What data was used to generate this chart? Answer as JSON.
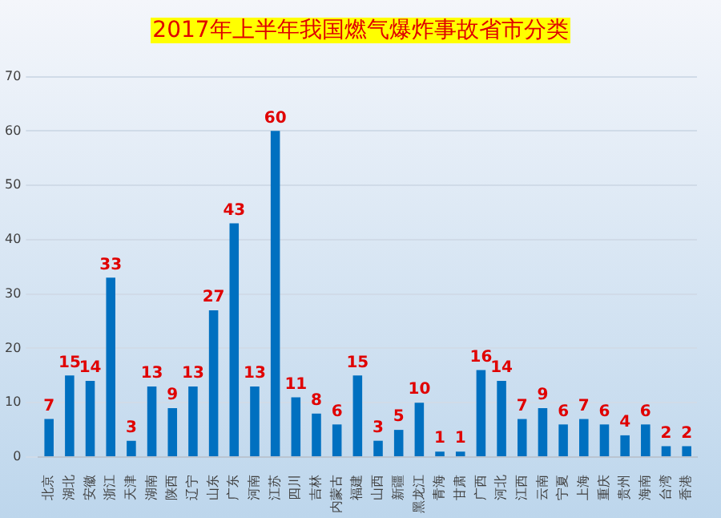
{
  "chart_data": {
    "type": "bar",
    "title": "2017年上半年我国燃气爆炸事故省市分类",
    "categories": [
      "北京",
      "湖北",
      "安徽",
      "浙江",
      "天津",
      "湖南",
      "陕西",
      "辽宁",
      "山东",
      "广东",
      "河南",
      "江苏",
      "四川",
      "吉林",
      "内蒙古",
      "福建",
      "山西",
      "新疆",
      "黑龙江",
      "青海",
      "甘肃",
      "广西",
      "河北",
      "江西",
      "云南",
      "宁夏",
      "上海",
      "重庆",
      "贵州",
      "海南",
      "台湾",
      "香港"
    ],
    "values": [
      7,
      15,
      14,
      33,
      3,
      13,
      9,
      13,
      27,
      43,
      13,
      60,
      11,
      8,
      6,
      15,
      3,
      5,
      10,
      1,
      1,
      16,
      14,
      7,
      9,
      6,
      7,
      6,
      4,
      6,
      2,
      2
    ],
    "color": "#0070c0",
    "ylim": [
      0,
      70
    ],
    "yticks": [
      0,
      10,
      20,
      30,
      40,
      50,
      60,
      70
    ],
    "grid": "y",
    "data_labels": true,
    "legend": false
  }
}
